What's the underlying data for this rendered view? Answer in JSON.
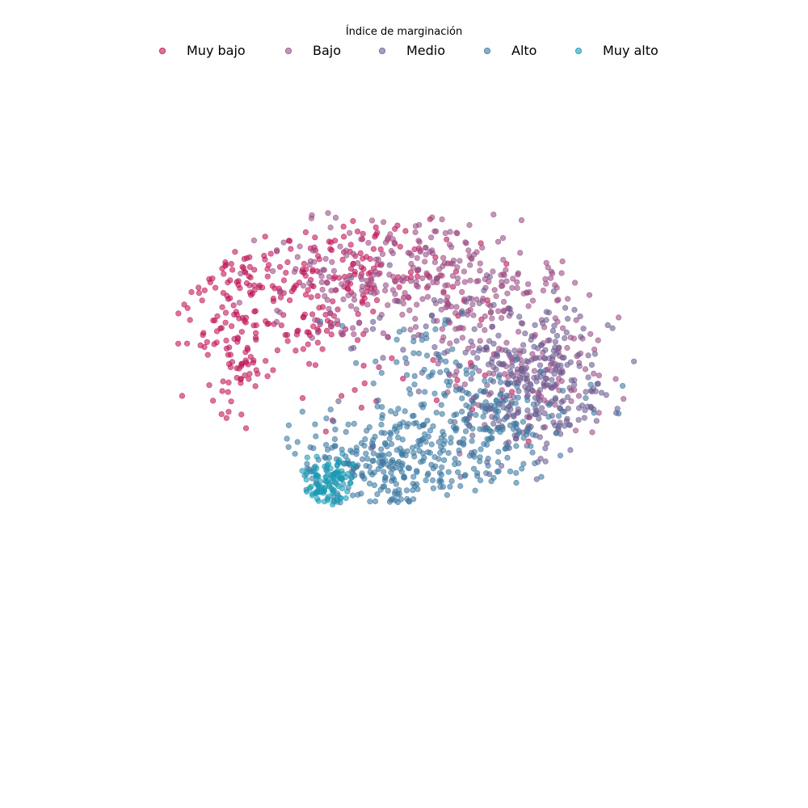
{
  "chart_data": {
    "type": "scatter",
    "title": "",
    "xlabel": "",
    "ylabel": "",
    "axes_visible": false,
    "grid": false,
    "legend": {
      "title": "Índice de marginación",
      "placement": "top-center",
      "orientation": "horizontal"
    },
    "xlim": [
      -1,
      1
    ],
    "ylim": [
      -1,
      1
    ],
    "marker_opacity": 0.6,
    "series": [
      {
        "name": "Muy bajo",
        "color": "#c0185a",
        "regions": [
          {
            "cx": -0.5,
            "cy": 0.35,
            "sx": 0.2,
            "sy": 0.13,
            "n": 170,
            "ylimit": [
              -0.18,
              0.6
            ]
          },
          {
            "cx": -0.12,
            "cy": 0.42,
            "sx": 0.18,
            "sy": 0.09,
            "n": 120,
            "ylimit": [
              0.15,
              0.62
            ]
          },
          {
            "cx": -0.55,
            "cy": 0.1,
            "sx": 0.05,
            "sy": 0.09,
            "n": 50,
            "ylimit": [
              -0.18,
              0.6
            ]
          },
          {
            "cx": 0.1,
            "cy": 0.15,
            "sx": 0.25,
            "sy": 0.18,
            "n": 30,
            "ylimit": [
              -0.2,
              0.6
            ]
          }
        ]
      },
      {
        "name": "Bajo",
        "color": "#9b4f86",
        "regions": [
          {
            "cx": 0.1,
            "cy": 0.42,
            "sx": 0.22,
            "sy": 0.1,
            "n": 200,
            "ylimit": [
              0.1,
              0.62
            ]
          },
          {
            "cx": 0.4,
            "cy": 0.17,
            "sx": 0.14,
            "sy": 0.14,
            "n": 170,
            "ylimit": [
              -0.2,
              0.55
            ]
          },
          {
            "cx": -0.22,
            "cy": 0.38,
            "sx": 0.14,
            "sy": 0.1,
            "n": 60,
            "ylimit": [
              0.1,
              0.62
            ]
          }
        ]
      },
      {
        "name": "Medio",
        "color": "#6d5e92",
        "regions": [
          {
            "cx": 0.45,
            "cy": 0.02,
            "sx": 0.12,
            "sy": 0.12,
            "n": 240,
            "ylimit": [
              -0.3,
              0.4
            ]
          },
          {
            "cx": 0.18,
            "cy": 0.2,
            "sx": 0.16,
            "sy": 0.12,
            "n": 70,
            "ylimit": [
              -0.1,
              0.55
            ]
          }
        ]
      },
      {
        "name": "Alto",
        "color": "#3e7aa2",
        "regions": [
          {
            "cx": -0.05,
            "cy": -0.21,
            "sx": 0.17,
            "sy": 0.08,
            "n": 280,
            "ylimit": [
              -0.42,
              0.02
            ]
          },
          {
            "cx": 0.28,
            "cy": -0.08,
            "sx": 0.14,
            "sy": 0.09,
            "n": 160,
            "ylimit": [
              -0.3,
              0.15
            ]
          },
          {
            "cx": 0.05,
            "cy": 0.1,
            "sx": 0.12,
            "sy": 0.1,
            "n": 50,
            "ylimit": [
              -0.1,
              0.3
            ]
          }
        ]
      },
      {
        "name": "Muy alto",
        "color": "#1a9bb4",
        "regions": [
          {
            "cx": -0.27,
            "cy": -0.3,
            "sx": 0.04,
            "sy": 0.06,
            "n": 70,
            "ylimit": [
              -0.42,
              -0.18
            ]
          },
          {
            "cx": -0.22,
            "cy": -0.23,
            "sx": 0.03,
            "sy": 0.03,
            "n": 30,
            "ylimit": [
              -0.32,
              -0.16
            ]
          }
        ]
      }
    ]
  }
}
